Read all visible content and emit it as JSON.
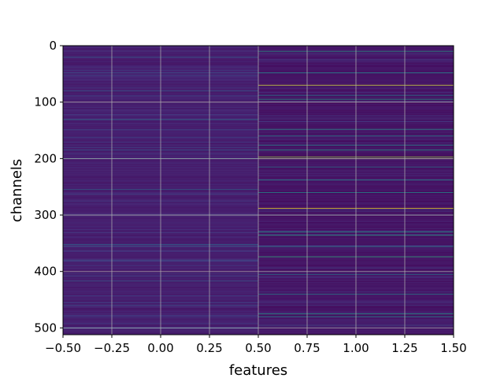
{
  "chart_data": {
    "type": "heatmap",
    "title": "",
    "xlabel": "features",
    "ylabel": "channels",
    "xlim": [
      -0.5,
      1.5
    ],
    "ylim": [
      512,
      0
    ],
    "y_inverted": true,
    "colormap": "viridis",
    "grid": true,
    "columns": [
      0,
      1
    ],
    "rows": 512,
    "x_ticks": [
      "−0.50",
      "−0.25",
      "0.00",
      "0.25",
      "0.50",
      "0.75",
      "1.00",
      "1.25",
      "1.50"
    ],
    "x_tick_values": [
      -0.5,
      -0.25,
      0.0,
      0.25,
      0.5,
      0.75,
      1.0,
      1.25,
      1.5
    ],
    "y_ticks": [
      "0",
      "100",
      "200",
      "300",
      "400",
      "500"
    ],
    "y_tick_values": [
      0,
      100,
      200,
      300,
      400,
      500
    ],
    "column_background_level": [
      0.06,
      0.03
    ],
    "highlight_rows": {
      "column_0": [
        {
          "row": 20,
          "level": 0.3
        },
        {
          "row": 48,
          "level": 0.25
        },
        {
          "row": 80,
          "level": 0.3
        },
        {
          "row": 131,
          "level": 0.4
        },
        {
          "row": 185,
          "level": 0.3
        },
        {
          "row": 200,
          "level": 0.55
        },
        {
          "row": 255,
          "level": 0.35
        },
        {
          "row": 300,
          "level": 0.25
        },
        {
          "row": 352,
          "level": 0.35
        },
        {
          "row": 355,
          "level": 0.3
        },
        {
          "row": 417,
          "level": 0.3
        },
        {
          "row": 460,
          "level": 0.25
        },
        {
          "row": 500,
          "level": 0.3
        }
      ],
      "column_1": [
        {
          "row": 10,
          "level": 0.55
        },
        {
          "row": 48,
          "level": 0.5
        },
        {
          "row": 70,
          "level": 0.95
        },
        {
          "row": 88,
          "level": 0.45
        },
        {
          "row": 95,
          "level": 0.55
        },
        {
          "row": 148,
          "level": 0.55
        },
        {
          "row": 160,
          "level": 0.45
        },
        {
          "row": 176,
          "level": 0.5
        },
        {
          "row": 185,
          "level": 0.55
        },
        {
          "row": 197,
          "level": 0.85
        },
        {
          "row": 200,
          "level": 0.9
        },
        {
          "row": 215,
          "level": 0.4
        },
        {
          "row": 238,
          "level": 0.5
        },
        {
          "row": 260,
          "level": 0.5
        },
        {
          "row": 288,
          "level": 0.98
        },
        {
          "row": 300,
          "level": 0.4
        },
        {
          "row": 330,
          "level": 0.55
        },
        {
          "row": 336,
          "level": 0.6
        },
        {
          "row": 356,
          "level": 0.45
        },
        {
          "row": 374,
          "level": 0.65
        },
        {
          "row": 405,
          "level": 0.4
        },
        {
          "row": 440,
          "level": 0.45
        },
        {
          "row": 475,
          "level": 0.55
        },
        {
          "row": 480,
          "level": 0.5
        }
      ]
    }
  }
}
